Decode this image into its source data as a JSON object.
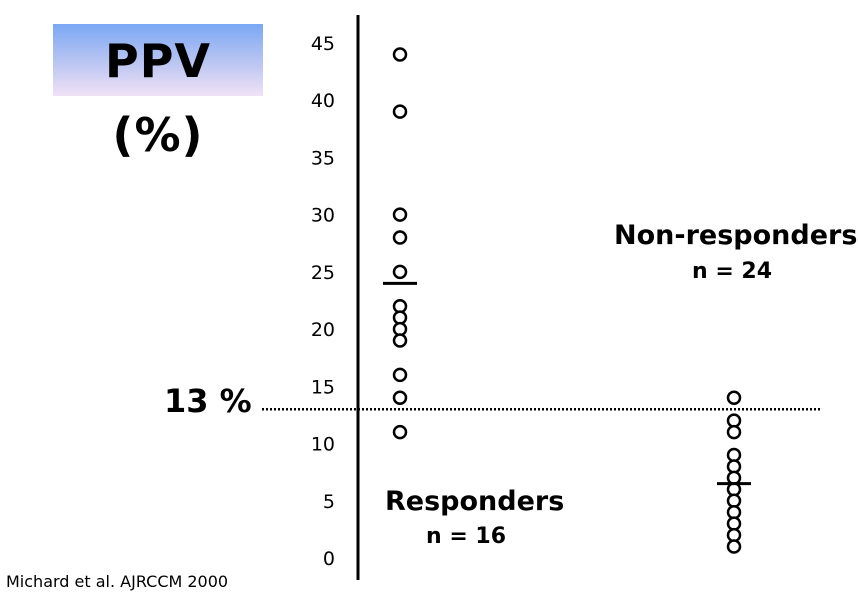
{
  "title": "PPV (%)",
  "threshold_label": "13 %",
  "citation": "Michard et al. AJRCCM 2000",
  "chart_data": {
    "type": "scatter",
    "ylim": [
      0,
      45
    ],
    "yticks": [
      "0",
      "5",
      "10",
      "15",
      "20",
      "25",
      "30",
      "35",
      "40",
      "45"
    ],
    "threshold": 13,
    "grid": false,
    "groups": [
      {
        "label": "Responders",
        "n_label": "n = 16",
        "values": [
          44,
          39,
          30,
          28,
          25,
          22,
          21,
          20,
          19,
          16,
          14,
          11
        ],
        "median": 24
      },
      {
        "label": "Non-responders",
        "n_label": "n = 24",
        "values": [
          14,
          12,
          11,
          9,
          8,
          7,
          6,
          5,
          4,
          3,
          2,
          1
        ],
        "median": 6.5
      }
    ],
    "colors": {
      "marker": "#000000",
      "axis": "#000000"
    }
  }
}
